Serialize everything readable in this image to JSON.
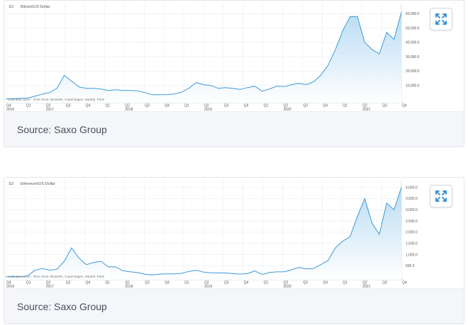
{
  "source_label": "Source: Saxo Group",
  "expand_icon": "expand-arrows-icon",
  "colors": {
    "line": "#3d9ad8",
    "fill_top": "#b9dcf3",
    "fill_bottom": "#ffffff",
    "grid": "#e9ecf1",
    "caption_bg": "#f5f6fa"
  },
  "timeline": {
    "quarters": [
      "Q4",
      "Q1",
      "Q2",
      "Q3",
      "Q4",
      "Q1",
      "Q2",
      "Q3",
      "Q4",
      "Q1",
      "Q2",
      "Q3",
      "Q4",
      "Q1",
      "Q2",
      "Q3",
      "Q4",
      "Q1",
      "Q2",
      "Q3",
      "Q4"
    ],
    "years": [
      {
        "label": "2016",
        "q_index": 0
      },
      {
        "label": "2017",
        "q_index": 2
      },
      {
        "label": "2018",
        "q_index": 6
      },
      {
        "label": "2019",
        "q_index": 10
      },
      {
        "label": "2020",
        "q_index": 14
      },
      {
        "label": "2021",
        "q_index": 18
      }
    ]
  },
  "chart_data": [
    {
      "type": "area",
      "title": "Bitcoin/US Dollar",
      "interval": "1D",
      "note": "Indicative price · Time Zone: Brussels, Copenhagen, Madrid, Paris",
      "y_ticks": [
        "10,000.0",
        "20,000.0",
        "30,000.0",
        "40,000.0",
        "50,000.0",
        "60,000.0"
      ],
      "y_tick_values": [
        10000,
        20000,
        30000,
        40000,
        50000,
        60000
      ],
      "ylim": [
        -2000,
        67000
      ],
      "x": [
        "2016-10",
        "2016-12",
        "2017-02",
        "2017-04",
        "2017-06",
        "2017-08",
        "2017-10",
        "2017-11",
        "2017-12",
        "2018-01",
        "2018-02",
        "2018-03",
        "2018-04",
        "2018-05",
        "2018-06",
        "2018-07",
        "2018-08",
        "2018-09",
        "2018-10",
        "2018-11",
        "2018-12",
        "2019-01",
        "2019-02",
        "2019-03",
        "2019-04",
        "2019-05",
        "2019-06",
        "2019-07",
        "2019-08",
        "2019-09",
        "2019-10",
        "2019-11",
        "2019-12",
        "2020-01",
        "2020-02",
        "2020-03",
        "2020-04",
        "2020-05",
        "2020-06",
        "2020-07",
        "2020-08",
        "2020-09",
        "2020-10",
        "2020-11",
        "2020-12",
        "2021-01",
        "2021-02",
        "2021-03",
        "2021-04",
        "2021-05",
        "2021-06",
        "2021-07",
        "2021-08",
        "2021-09",
        "2021-10"
      ],
      "values": [
        600,
        800,
        1000,
        1200,
        2500,
        4000,
        5000,
        8000,
        17000,
        13000,
        9000,
        8000,
        8000,
        7500,
        6500,
        7000,
        6500,
        6500,
        6300,
        5000,
        3500,
        3500,
        3600,
        4000,
        5300,
        8000,
        12000,
        10500,
        10000,
        8000,
        8500,
        8000,
        7200,
        8500,
        9500,
        6000,
        7500,
        9500,
        9200,
        10500,
        11500,
        10500,
        12500,
        17000,
        24000,
        35000,
        48000,
        58000,
        58000,
        40000,
        35000,
        32000,
        47000,
        42000,
        61000
      ]
    },
    {
      "type": "area",
      "title": "Ethereum/US Dollar",
      "interval": "1D",
      "note": "Indicative price · Time Zone: Brussels, Copenhagen, Madrid, Paris",
      "y_ticks": [
        "500.0",
        "1,000.0",
        "1,500.0",
        "2,000.0",
        "2,500.0",
        "3,000.0",
        "3,500.0",
        "4,000.0"
      ],
      "y_tick_values": [
        500,
        1000,
        1500,
        2000,
        2500,
        3000,
        3500,
        4000
      ],
      "ylim": [
        -120,
        4300
      ],
      "x": [
        "2016-10",
        "2016-12",
        "2017-02",
        "2017-04",
        "2017-06",
        "2017-08",
        "2017-10",
        "2017-11",
        "2017-12",
        "2018-01",
        "2018-02",
        "2018-03",
        "2018-04",
        "2018-05",
        "2018-06",
        "2018-07",
        "2018-08",
        "2018-09",
        "2018-10",
        "2018-11",
        "2018-12",
        "2019-01",
        "2019-02",
        "2019-03",
        "2019-04",
        "2019-05",
        "2019-06",
        "2019-07",
        "2019-08",
        "2019-09",
        "2019-10",
        "2019-11",
        "2019-12",
        "2020-01",
        "2020-02",
        "2020-03",
        "2020-04",
        "2020-05",
        "2020-06",
        "2020-07",
        "2020-08",
        "2020-09",
        "2020-10",
        "2020-11",
        "2020-12",
        "2021-01",
        "2021-02",
        "2021-03",
        "2021-04",
        "2021-05",
        "2021-06",
        "2021-07",
        "2021-08",
        "2021-09",
        "2021-10"
      ],
      "values": [
        12,
        8,
        11,
        50,
        300,
        380,
        300,
        350,
        700,
        1300,
        850,
        550,
        650,
        700,
        450,
        450,
        280,
        230,
        200,
        120,
        90,
        130,
        140,
        140,
        165,
        250,
        300,
        220,
        190,
        180,
        180,
        150,
        130,
        150,
        270,
        110,
        200,
        230,
        230,
        320,
        430,
        360,
        380,
        550,
        740,
        1300,
        1600,
        1800,
        2700,
        3500,
        2400,
        1900,
        3300,
        3000,
        4000
      ]
    }
  ]
}
